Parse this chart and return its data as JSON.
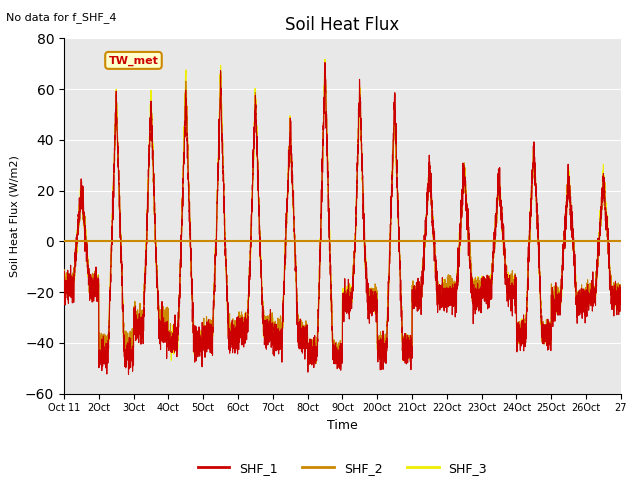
{
  "title": "Soil Heat Flux",
  "subtitle": "No data for f_SHF_4",
  "ylabel": "Soil Heat Flux (W/m2)",
  "xlabel": "Time",
  "annotation": "TW_met",
  "ylim": [
    -60,
    80
  ],
  "yticks": [
    -60,
    -40,
    -20,
    0,
    20,
    40,
    60,
    80
  ],
  "x_tick_labels": [
    "Oct 11",
    "2Oct",
    "3Oct",
    "4Oct",
    "5Oct",
    "6Oct",
    "7Oct",
    "8Oct",
    "9Oct",
    "20Oct",
    "21Oct",
    "22Oct",
    "23Oct",
    "24Oct",
    "25Oct",
    "26Oct",
    "27"
  ],
  "colors": {
    "SHF_1": "#cc0000",
    "SHF_2": "#cc8800",
    "SHF_3": "#eeee00",
    "hline": "#cc8800",
    "background": "#e8e8e8",
    "annotation_bg": "#ffffcc",
    "annotation_border": "#cc8800"
  },
  "legend": [
    {
      "label": "SHF_1",
      "color": "#cc0000"
    },
    {
      "label": "SHF_2",
      "color": "#cc8800"
    },
    {
      "label": "SHF_3",
      "color": "#eeee00"
    }
  ],
  "num_points": 4800,
  "days": 16,
  "seed": 99
}
